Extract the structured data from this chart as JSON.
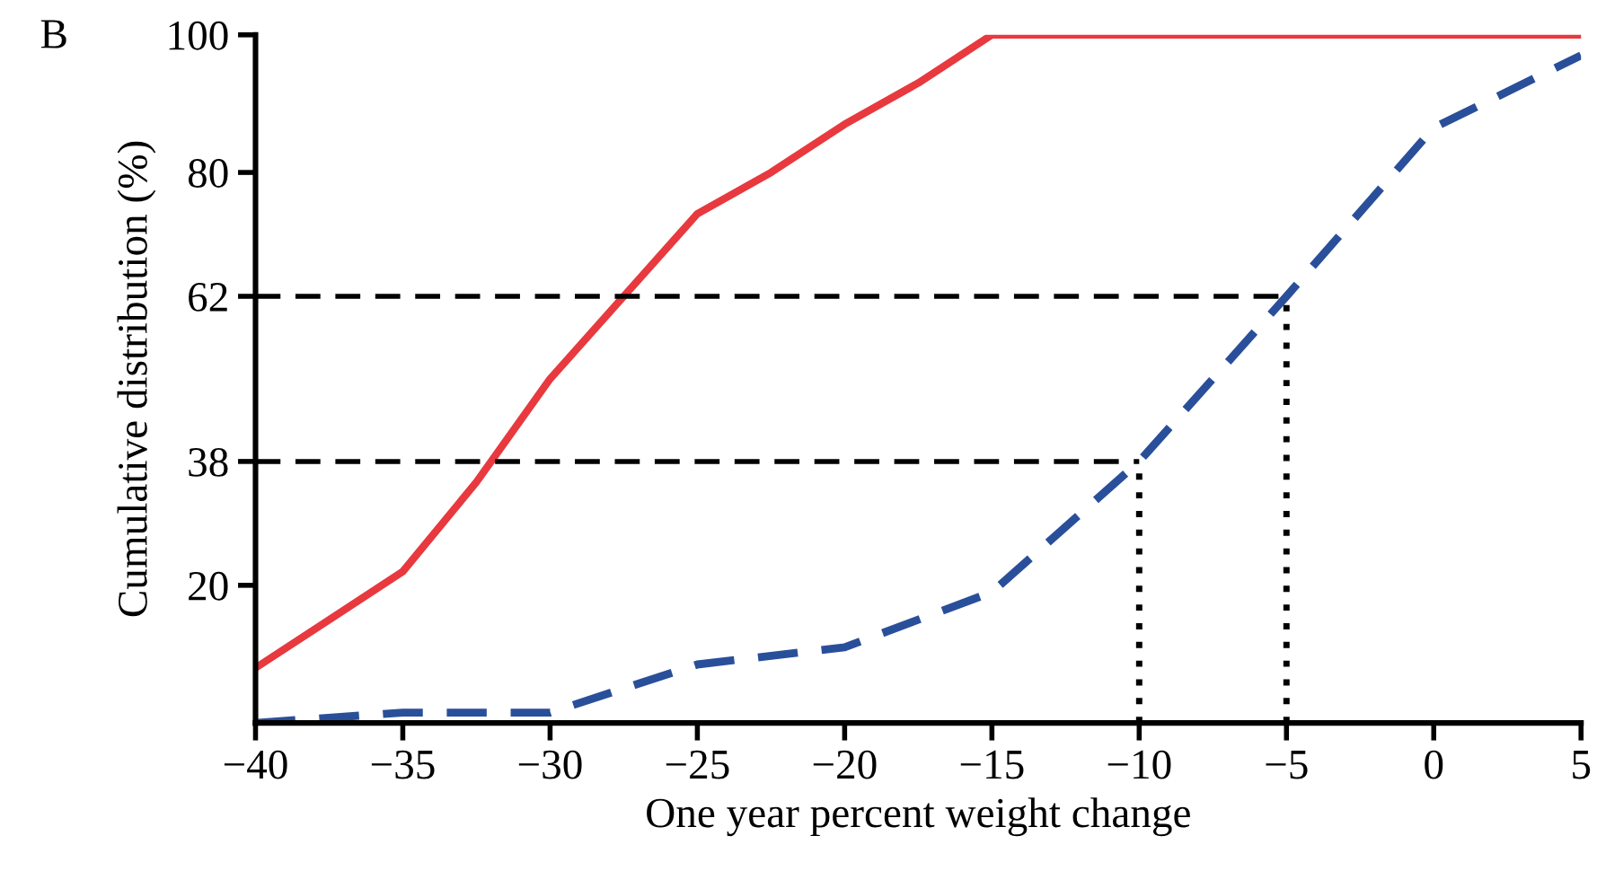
{
  "chart_data": {
    "type": "line",
    "xlabel": "One year percent weight change",
    "ylabel": "Cumulative distribution (%)",
    "annotations": [
      "B"
    ],
    "series": [
      {
        "color": "#e8393f",
        "line_style": "solid",
        "x": [
          -40,
          -37.5,
          -35,
          -32.5,
          -30,
          -27.5,
          -25,
          -22.5,
          -20,
          -17.5,
          -15,
          5
        ],
        "values": [
          8,
          15,
          22,
          35,
          50,
          62,
          74,
          80,
          87,
          93,
          100,
          100
        ]
      },
      {
        "color": "#2a4f9a",
        "line_style": "dashed",
        "x": [
          -40,
          -35,
          -30,
          -25,
          -20,
          -15,
          -10,
          -5,
          0,
          5
        ],
        "values": [
          0,
          1.5,
          1.5,
          8.5,
          11,
          19,
          38,
          62,
          86.5,
          97
        ]
      }
    ],
    "ref_lines": [
      {
        "axis": "y",
        "value": 62,
        "line_style": "dashed",
        "color": "#000000"
      },
      {
        "axis": "y",
        "value": 38,
        "line_style": "dashed",
        "color": "#000000"
      },
      {
        "axis": "x",
        "value": -10,
        "line_style": "dotted",
        "color": "#000000"
      },
      {
        "axis": "x",
        "value": -5,
        "line_style": "dotted",
        "color": "#000000"
      }
    ],
    "xlim": [
      -40,
      5
    ],
    "xticks": [
      {
        "value": -40,
        "label": "−40"
      },
      {
        "value": -35,
        "label": "−35"
      },
      {
        "value": -30,
        "label": "−30"
      },
      {
        "value": -25,
        "label": "−25"
      },
      {
        "value": -20,
        "label": "−20"
      },
      {
        "value": -15,
        "label": "−15"
      },
      {
        "value": -10,
        "label": "−10"
      },
      {
        "value": -5,
        "label": "−5"
      },
      0,
      5
    ],
    "ylim": [
      0,
      100
    ],
    "yticks": [
      20,
      38,
      62,
      80,
      100
    ],
    "grid": false,
    "legend": false,
    "marker": "none"
  }
}
